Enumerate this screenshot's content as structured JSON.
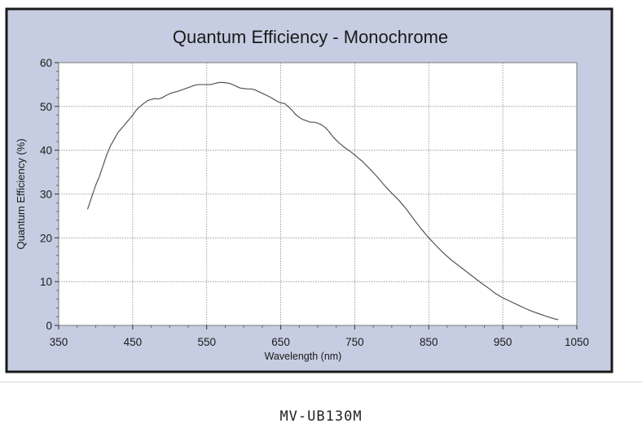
{
  "caption": "MV-UB130M",
  "chart_data": {
    "type": "line",
    "title": "Quantum Efficiency - Monochrome",
    "xlabel": "Wavelength (nm)",
    "ylabel": "Quantum Efficiency (%)",
    "xlim": [
      350,
      1050
    ],
    "ylim": [
      0,
      60
    ],
    "xticks": [
      350,
      450,
      550,
      650,
      750,
      850,
      950,
      1050
    ],
    "yticks": [
      0,
      10,
      20,
      30,
      40,
      50,
      60
    ],
    "grid": true,
    "legend": "none",
    "colors": {
      "frame_bg": "#c6cde2",
      "plot_bg": "#ffffff",
      "border": "#1a1a1a",
      "line": "#555555",
      "grid": "#8a8a8a"
    },
    "series": [
      {
        "x": [
          389,
          395,
          400,
          405,
          410,
          415,
          420,
          425,
          430,
          435,
          440,
          445,
          450,
          455,
          460,
          465,
          470,
          475,
          480,
          485,
          490,
          495,
          500,
          505,
          510,
          515,
          520,
          525,
          530,
          535,
          540,
          545,
          550,
          555,
          560,
          565,
          570,
          575,
          580,
          585,
          590,
          595,
          600,
          605,
          610,
          615,
          620,
          625,
          630,
          635,
          640,
          645,
          650,
          655,
          660,
          665,
          670,
          675,
          680,
          685,
          690,
          695,
          700,
          705,
          710,
          715,
          720,
          725,
          730,
          735,
          740,
          745,
          750,
          760,
          770,
          780,
          790,
          800,
          810,
          820,
          830,
          840,
          850,
          860,
          870,
          880,
          890,
          900,
          910,
          920,
          930,
          940,
          950,
          960,
          970,
          980,
          990,
          1000,
          1010,
          1020,
          1025
        ],
        "y": [
          26.5,
          29.5,
          32,
          34,
          36.5,
          39,
          41,
          42.5,
          44,
          45,
          46,
          47,
          48,
          49.2,
          50,
          50.7,
          51.3,
          51.6,
          51.8,
          51.7,
          52,
          52.5,
          52.9,
          53.2,
          53.4,
          53.7,
          54,
          54.3,
          54.6,
          54.9,
          55,
          55,
          55,
          55,
          55.2,
          55.4,
          55.5,
          55.4,
          55.3,
          55,
          54.6,
          54.2,
          54.1,
          54,
          54,
          53.8,
          53.4,
          53,
          52.6,
          52.2,
          51.7,
          51.2,
          50.8,
          50.7,
          50,
          49.2,
          48.2,
          47.5,
          47,
          46.7,
          46.4,
          46.4,
          46.2,
          45.8,
          45.2,
          44.3,
          43.2,
          42.3,
          41.5,
          40.8,
          40.2,
          39.6,
          38.9,
          37.5,
          35.8,
          34,
          32,
          30.2,
          28.5,
          26.5,
          24.2,
          22,
          20,
          18.2,
          16.5,
          15,
          13.7,
          12.4,
          11.1,
          9.8,
          8.6,
          7.3,
          6.3,
          5.5,
          4.7,
          3.9,
          3.2,
          2.6,
          2,
          1.5,
          1.3
        ]
      }
    ]
  }
}
